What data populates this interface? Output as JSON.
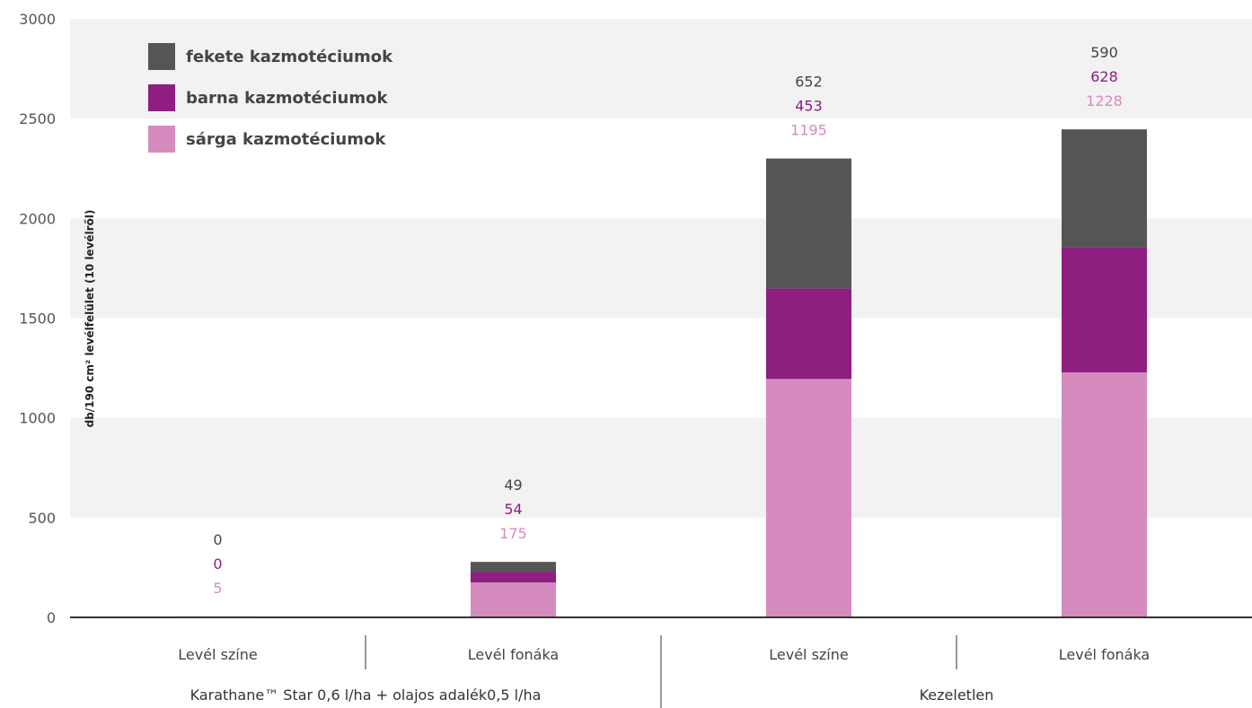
{
  "chart_data": {
    "type": "bar",
    "stacked": true,
    "title": "",
    "ylabel": "db/190 cm² levélfelület (10 levélről)",
    "ylim": [
      0,
      3000
    ],
    "yticks": [
      "0",
      "500",
      "1000",
      "1500",
      "2000",
      "2500",
      "3000"
    ],
    "ytick_values": [
      0,
      500,
      1000,
      1500,
      2000,
      2500,
      3000
    ],
    "categories": [
      "Levél színe",
      "Levél fonáka",
      "Levél színe",
      "Levél fonáka"
    ],
    "groups": [
      {
        "label": "Karathane™ Star 0,6 l/ha + olajos adalék0,5 l/ha",
        "categories": [
          0,
          1
        ]
      },
      {
        "label": "Kezeletlen",
        "categories": [
          2,
          3
        ]
      }
    ],
    "series": [
      {
        "name": "sárga kazmotéciumok",
        "color": "#d68bbf",
        "values": [
          5,
          175,
          1195,
          1228
        ],
        "labels": [
          "5",
          "175",
          "1195",
          "1228"
        ]
      },
      {
        "name": "barna kazmotéciumok",
        "color": "#8e1e80",
        "values": [
          0,
          54,
          453,
          628
        ],
        "labels": [
          "0",
          "54",
          "453",
          "628"
        ]
      },
      {
        "name": "fekete kazmotéciumok",
        "color": "#555555",
        "values": [
          0,
          49,
          652,
          590
        ],
        "labels": [
          "0",
          "49",
          "652",
          "590"
        ]
      }
    ],
    "legend_order": [
      2,
      1,
      0
    ],
    "legend_position": "top-left",
    "grid": "alternating horizontal bands",
    "band_color": "#f2f2f2"
  }
}
